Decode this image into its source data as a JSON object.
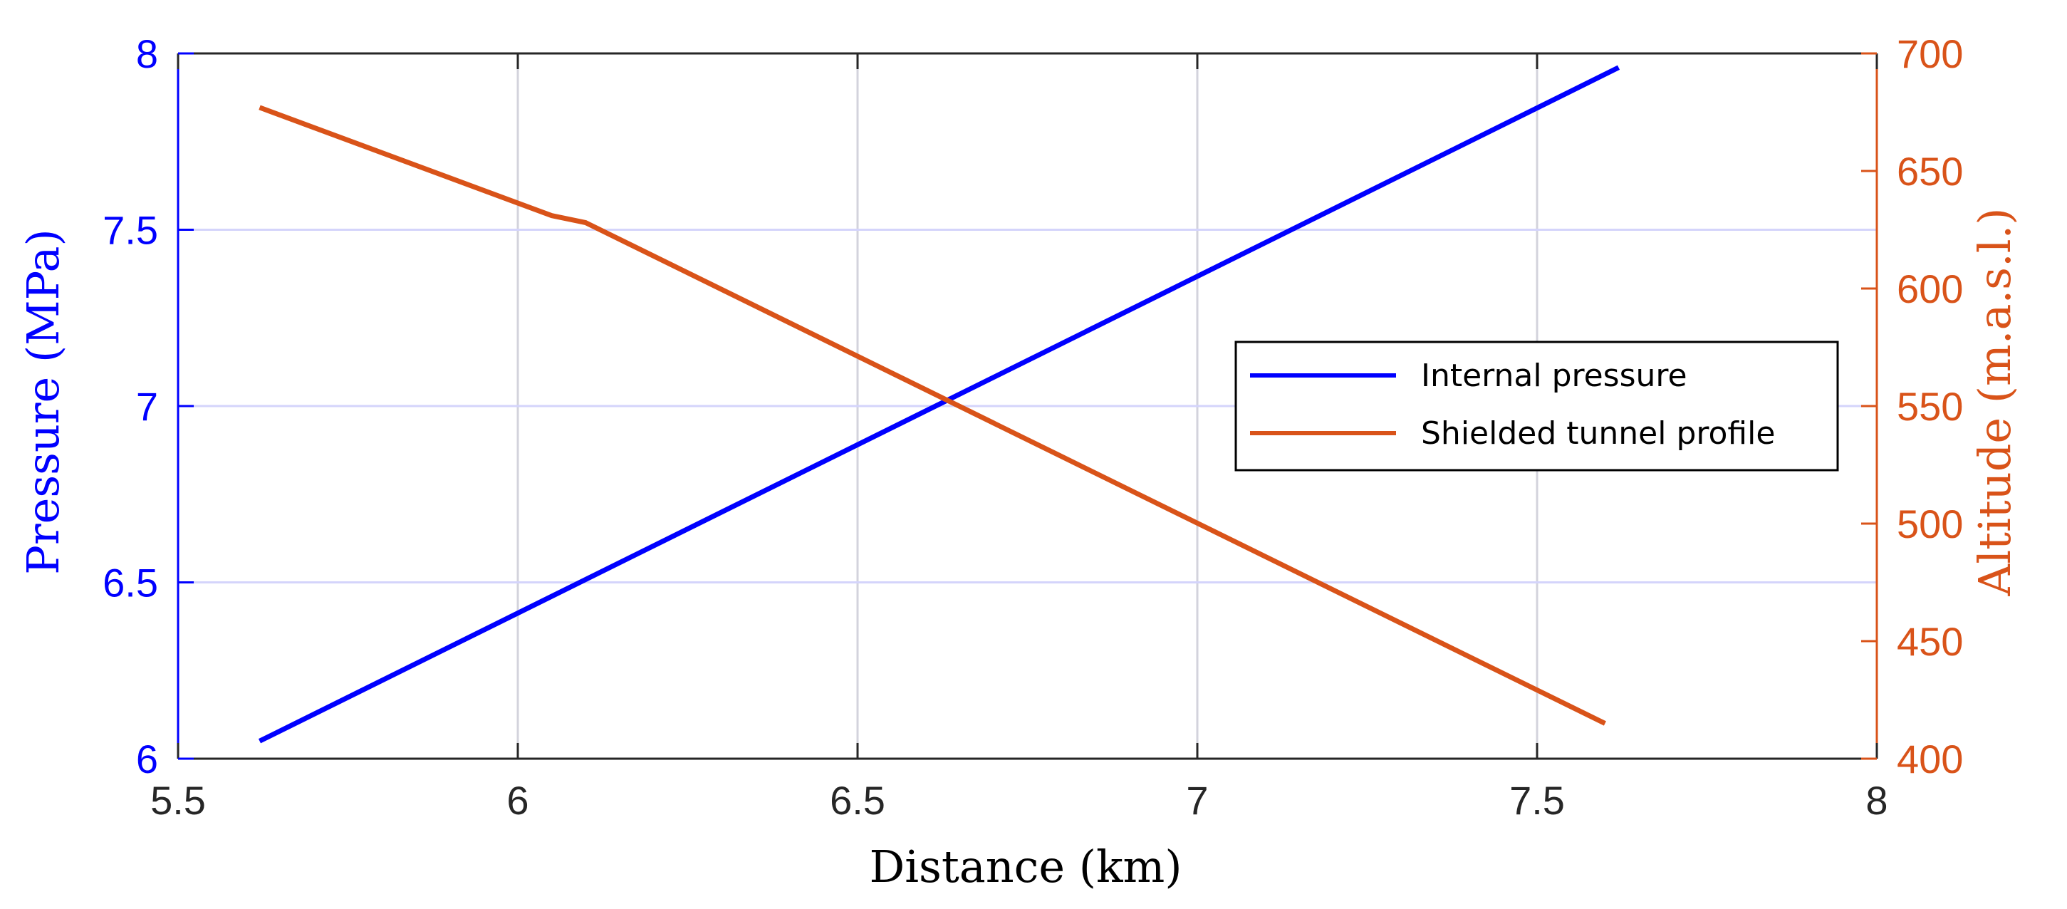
{
  "chart_data": {
    "type": "line",
    "xlabel": "Distance (km)",
    "ylabel_left": "Pressure (MPa)",
    "ylabel_right": "Altitude (m.a.s.l.)",
    "xlim": [
      5.5,
      8
    ],
    "ylim_left": [
      6,
      8
    ],
    "ylim_right": [
      400,
      700
    ],
    "xticks": [
      "5.5",
      "6",
      "6.5",
      "7",
      "7.5",
      "8"
    ],
    "yticks_left": [
      "6",
      "6.5",
      "7",
      "7.5",
      "8"
    ],
    "yticks_right": [
      "400",
      "450",
      "500",
      "550",
      "600",
      "650",
      "700"
    ],
    "grid": true,
    "legend_position": "center-right",
    "series": [
      {
        "name": "Internal pressure",
        "axis": "left",
        "color": "#0000ff",
        "x": [
          5.62,
          7.62
        ],
        "y": [
          6.05,
          7.96
        ]
      },
      {
        "name": "Shielded tunnel profile",
        "axis": "right",
        "color": "#d95319",
        "x": [
          5.62,
          6.05,
          6.1,
          7.6
        ],
        "y": [
          677,
          631,
          628,
          415
        ]
      }
    ]
  }
}
